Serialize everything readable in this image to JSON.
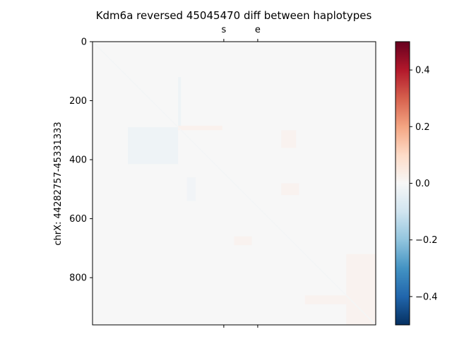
{
  "chart_data": {
    "type": "heatmap",
    "title": "Kdm6a reversed 45045470 diff between haplotypes",
    "ylabel": "chrX: 44282757-45331333",
    "xlabel": "",
    "xlim": [
      0,
      960
    ],
    "ylim": [
      960,
      0
    ],
    "y_ticks": [
      0,
      200,
      400,
      600,
      800
    ],
    "top_axis_ticks": [
      {
        "position": 445,
        "label": "s"
      },
      {
        "position": 560,
        "label": "e"
      }
    ],
    "colorbar": {
      "colormap": "RdBu_r",
      "vmin": -0.5,
      "vmax": 0.5,
      "ticks": [
        -0.4,
        -0.2,
        0.0,
        0.2,
        0.4
      ],
      "tick_labels": [
        "−0.4",
        "−0.2",
        "0.0",
        "0.2",
        "0.4"
      ]
    },
    "background_value": 0.0,
    "features": [
      {
        "kind": "block",
        "x0": 300,
        "x1": 290,
        "y0": 120,
        "y1": 285,
        "value": -0.03
      },
      {
        "kind": "block",
        "x0": 120,
        "x1": 290,
        "y0": 290,
        "y1": 415,
        "value": -0.03
      },
      {
        "kind": "block",
        "x0": 290,
        "x1": 440,
        "y0": 285,
        "y1": 300,
        "value": 0.025
      },
      {
        "kind": "block",
        "x0": 320,
        "x1": 350,
        "y0": 460,
        "y1": 540,
        "value": -0.02
      },
      {
        "kind": "block",
        "x0": 640,
        "x1": 690,
        "y0": 300,
        "y1": 360,
        "value": 0.02
      },
      {
        "kind": "block",
        "x0": 640,
        "x1": 700,
        "y0": 480,
        "y1": 520,
        "value": 0.02
      },
      {
        "kind": "block",
        "x0": 480,
        "x1": 540,
        "y0": 660,
        "y1": 690,
        "value": 0.02
      },
      {
        "kind": "block",
        "x0": 720,
        "x1": 860,
        "y0": 860,
        "y1": 890,
        "value": 0.02
      },
      {
        "kind": "block",
        "x0": 860,
        "x1": 960,
        "y0": 720,
        "y1": 960,
        "value": 0.02
      },
      {
        "kind": "diagonal",
        "value": -0.01
      }
    ]
  }
}
